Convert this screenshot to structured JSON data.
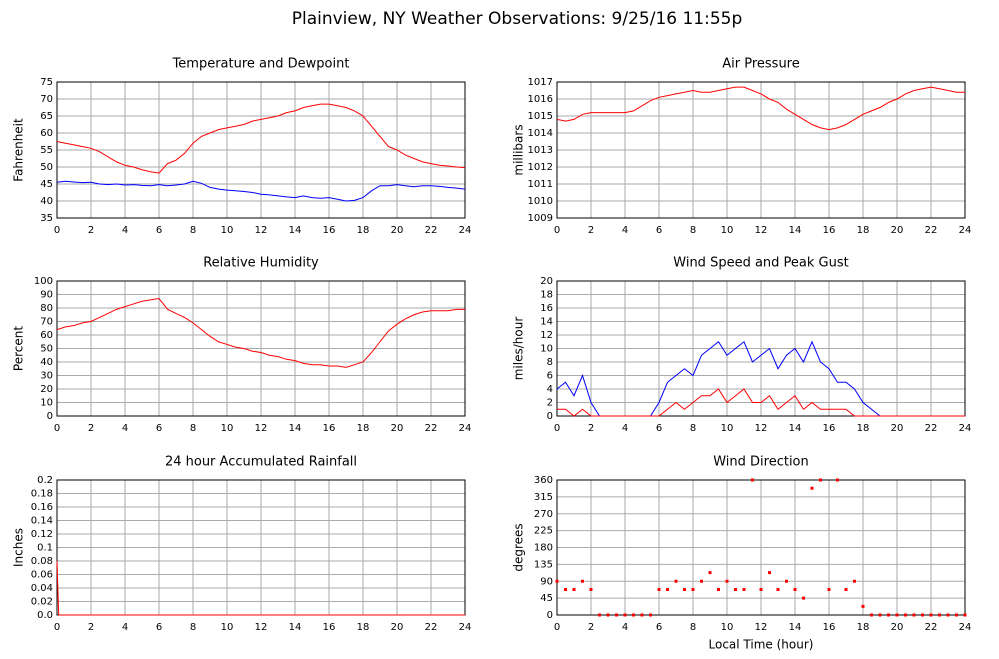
{
  "page_title": "Plainview, NY Weather Observations: 9/25/16 11:55p",
  "chart_data": [
    {
      "type": "line",
      "title": "Temperature and Dewpoint",
      "ylabel": "Fahrenheit",
      "grid": true,
      "xlim": [
        0,
        24
      ],
      "xticks": [
        0,
        2,
        4,
        6,
        8,
        10,
        12,
        14,
        16,
        18,
        20,
        22,
        24
      ],
      "ylim": [
        35,
        75
      ],
      "yticks": [
        35,
        40,
        45,
        50,
        55,
        60,
        65,
        70,
        75
      ],
      "x": [
        0,
        0.5,
        1,
        1.5,
        2,
        2.5,
        3,
        3.5,
        4,
        4.5,
        5,
        5.5,
        6,
        6.5,
        7,
        7.5,
        8,
        8.5,
        9,
        9.5,
        10,
        10.5,
        11,
        11.5,
        12,
        12.5,
        13,
        13.5,
        14,
        14.5,
        15,
        15.5,
        16,
        16.5,
        17,
        17.5,
        18,
        18.5,
        19,
        19.5,
        20,
        20.5,
        21,
        21.5,
        22,
        22.5,
        23,
        23.5,
        24
      ],
      "series": [
        {
          "color": "#ff0000",
          "values": [
            57.5,
            57,
            56.5,
            56,
            55.5,
            54.5,
            53,
            51.5,
            50.5,
            50,
            49.2,
            48.6,
            48.2,
            51,
            52,
            54,
            57,
            59,
            60,
            61,
            61.5,
            62,
            62.5,
            63.5,
            64,
            64.5,
            65,
            66,
            66.5,
            67.5,
            68,
            68.5,
            68.5,
            68,
            67.5,
            66.5,
            65,
            62,
            59,
            56,
            55,
            53.5,
            52.5,
            51.5,
            51,
            50.5,
            50.3,
            50,
            49.8
          ]
        },
        {
          "color": "#0000ff",
          "values": [
            45.5,
            45.8,
            45.6,
            45.4,
            45.5,
            45,
            44.8,
            45,
            44.7,
            44.8,
            44.6,
            44.5,
            44.8,
            44.5,
            44.7,
            45,
            45.8,
            45.2,
            44,
            43.5,
            43.2,
            43,
            42.8,
            42.5,
            42,
            41.8,
            41.5,
            41.2,
            41,
            41.5,
            41,
            40.8,
            41,
            40.5,
            40,
            40.2,
            41,
            43,
            44.5,
            44.5,
            44.8,
            44.5,
            44.2,
            44.5,
            44.5,
            44.3,
            44,
            43.8,
            43.5
          ]
        }
      ]
    },
    {
      "type": "line",
      "title": "Air Pressure",
      "ylabel": "millibars",
      "grid": true,
      "xlim": [
        0,
        24
      ],
      "xticks": [
        0,
        2,
        4,
        6,
        8,
        10,
        12,
        14,
        16,
        18,
        20,
        22,
        24
      ],
      "ylim": [
        1009,
        1017
      ],
      "yticks": [
        1009,
        1010,
        1011,
        1012,
        1013,
        1014,
        1015,
        1016,
        1017
      ],
      "x": [
        0,
        0.5,
        1,
        1.5,
        2,
        2.5,
        3,
        3.5,
        4,
        4.5,
        5,
        5.5,
        6,
        6.5,
        7,
        7.5,
        8,
        8.5,
        9,
        9.5,
        10,
        10.5,
        11,
        11.5,
        12,
        12.5,
        13,
        13.5,
        14,
        14.5,
        15,
        15.5,
        16,
        16.5,
        17,
        17.5,
        18,
        18.5,
        19,
        19.5,
        20,
        20.5,
        21,
        21.5,
        22,
        22.5,
        23,
        23.5,
        24
      ],
      "series": [
        {
          "color": "#ff0000",
          "values": [
            1014.8,
            1014.7,
            1014.8,
            1015.1,
            1015.2,
            1015.2,
            1015.2,
            1015.2,
            1015.2,
            1015.3,
            1015.6,
            1015.9,
            1016.1,
            1016.2,
            1016.3,
            1016.4,
            1016.5,
            1016.4,
            1016.4,
            1016.5,
            1016.6,
            1016.7,
            1016.7,
            1016.5,
            1016.3,
            1016.0,
            1015.8,
            1015.4,
            1015.1,
            1014.8,
            1014.5,
            1014.3,
            1014.2,
            1014.3,
            1014.5,
            1014.8,
            1015.1,
            1015.3,
            1015.5,
            1015.8,
            1016.0,
            1016.3,
            1016.5,
            1016.6,
            1016.7,
            1016.6,
            1016.5,
            1016.4,
            1016.4
          ]
        }
      ]
    },
    {
      "type": "line",
      "title": "Relative Humidity",
      "ylabel": "Percent",
      "grid": true,
      "xlim": [
        0,
        24
      ],
      "xticks": [
        0,
        2,
        4,
        6,
        8,
        10,
        12,
        14,
        16,
        18,
        20,
        22,
        24
      ],
      "ylim": [
        0,
        100
      ],
      "yticks": [
        0,
        10,
        20,
        30,
        40,
        50,
        60,
        70,
        80,
        90,
        100
      ],
      "x": [
        0,
        0.5,
        1,
        1.5,
        2,
        2.5,
        3,
        3.5,
        4,
        4.5,
        5,
        5.5,
        6,
        6.5,
        7,
        7.5,
        8,
        8.5,
        9,
        9.5,
        10,
        10.5,
        11,
        11.5,
        12,
        12.5,
        13,
        13.5,
        14,
        14.5,
        15,
        15.5,
        16,
        16.5,
        17,
        17.5,
        18,
        18.5,
        19,
        19.5,
        20,
        20.5,
        21,
        21.5,
        22,
        22.5,
        23,
        23.5,
        24
      ],
      "series": [
        {
          "color": "#ff0000",
          "values": [
            64,
            66,
            67,
            69,
            70,
            73,
            76,
            79,
            81,
            83,
            85,
            86,
            87,
            79,
            76,
            73,
            69,
            64,
            59,
            55,
            53,
            51,
            50,
            48,
            47,
            45,
            44,
            42,
            41,
            39,
            38,
            38,
            37,
            37,
            36,
            38,
            40,
            47,
            55,
            63,
            68,
            72,
            75,
            77,
            78,
            78,
            78,
            79,
            79
          ]
        }
      ]
    },
    {
      "type": "line",
      "title": "Wind Speed and Peak Gust",
      "ylabel": "miles/hour",
      "grid": true,
      "xlim": [
        0,
        24
      ],
      "xticks": [
        0,
        2,
        4,
        6,
        8,
        10,
        12,
        14,
        16,
        18,
        20,
        22,
        24
      ],
      "ylim": [
        0,
        20
      ],
      "yticks": [
        0,
        2,
        4,
        6,
        8,
        10,
        12,
        14,
        16,
        18,
        20
      ],
      "x": [
        0,
        0.5,
        1,
        1.5,
        2,
        2.5,
        3,
        3.5,
        4,
        4.5,
        5,
        5.5,
        6,
        6.5,
        7,
        7.5,
        8,
        8.5,
        9,
        9.5,
        10,
        10.5,
        11,
        11.5,
        12,
        12.5,
        13,
        13.5,
        14,
        14.5,
        15,
        15.5,
        16,
        16.5,
        17,
        17.5,
        18,
        18.5,
        19,
        19.5,
        20,
        20.5,
        21,
        21.5,
        22,
        22.5,
        23,
        23.5,
        24
      ],
      "series": [
        {
          "color": "#0000ff",
          "values": [
            4,
            5,
            3,
            6,
            2,
            0,
            0,
            0,
            0,
            0,
            0,
            0,
            2,
            5,
            6,
            7,
            6,
            9,
            10,
            11,
            9,
            10,
            11,
            8,
            9,
            10,
            7,
            9,
            10,
            8,
            11,
            8,
            7,
            5,
            5,
            4,
            2,
            1,
            0,
            0,
            0,
            0,
            0,
            0,
            0,
            0,
            0,
            0,
            0
          ]
        },
        {
          "color": "#ff0000",
          "values": [
            1,
            1,
            0,
            1,
            0,
            0,
            0,
            0,
            0,
            0,
            0,
            0,
            0,
            1,
            2,
            1,
            2,
            3,
            3,
            4,
            2,
            3,
            4,
            2,
            2,
            3,
            1,
            2,
            3,
            1,
            2,
            1,
            1,
            1,
            1,
            0,
            0,
            0,
            0,
            0,
            0,
            0,
            0,
            0,
            0,
            0,
            0,
            0,
            0
          ]
        }
      ]
    },
    {
      "type": "line",
      "title": "24 hour Accumulated Rainfall",
      "ylabel": "Inches",
      "grid": true,
      "xlim": [
        0,
        24
      ],
      "xticks": [
        0,
        2,
        4,
        6,
        8,
        10,
        12,
        14,
        16,
        18,
        20,
        22,
        24
      ],
      "ylim": [
        0,
        0.2
      ],
      "yticks": [
        {
          "value": 0,
          "label": "0.0"
        },
        0.02,
        0.04,
        0.06,
        0.08,
        0.1,
        0.12,
        0.14,
        0.16,
        0.18,
        0.2
      ],
      "x": [
        0,
        0.1,
        24
      ],
      "series": [
        {
          "color": "#ff0000",
          "values": [
            0.08,
            0,
            0
          ]
        }
      ]
    },
    {
      "type": "scatter",
      "title": "Wind Direction",
      "ylabel": "degrees",
      "xlabel": "Local Time (hour)",
      "grid": true,
      "xlim": [
        0,
        24
      ],
      "xticks": [
        0,
        2,
        4,
        6,
        8,
        10,
        12,
        14,
        16,
        18,
        20,
        22,
        24
      ],
      "ylim": [
        0,
        360
      ],
      "yticks": [
        0,
        45,
        90,
        135,
        180,
        225,
        270,
        315,
        360
      ],
      "x": [
        0,
        0.5,
        1,
        1.5,
        2,
        2.5,
        3,
        3.5,
        4,
        4.5,
        5,
        5.5,
        6,
        6.5,
        7,
        7.5,
        8,
        8.5,
        9,
        9.5,
        10,
        10.5,
        11,
        11.5,
        12,
        12.5,
        13,
        13.5,
        14,
        14.5,
        15,
        15.5,
        16,
        16.5,
        17,
        17.5,
        18,
        18.5,
        19,
        19.5,
        20,
        20.5,
        21,
        21.5,
        22,
        22.5,
        23,
        23.5,
        24
      ],
      "series": [
        {
          "color": "#ff0000",
          "values": [
            90,
            68,
            68,
            90,
            68,
            0,
            0,
            0,
            0,
            0,
            0,
            0,
            68,
            68,
            90,
            68,
            68,
            90,
            113,
            68,
            90,
            68,
            68,
            360,
            68,
            113,
            68,
            90,
            68,
            45,
            338,
            360,
            68,
            360,
            68,
            90,
            23,
            0,
            0,
            0,
            0,
            0,
            0,
            0,
            0,
            0,
            0,
            0,
            0
          ]
        }
      ]
    }
  ]
}
